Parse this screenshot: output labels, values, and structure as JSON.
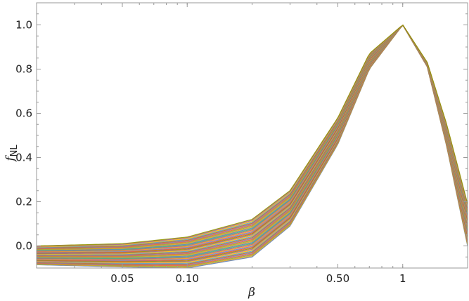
{
  "chart_data": {
    "type": "line",
    "title": "",
    "xlabel": "β",
    "ylabel_main": "f",
    "ylabel_sub": "NL",
    "x_scale": "log",
    "xlim": [
      0.02,
      2
    ],
    "ylim": [
      -0.1,
      1.1
    ],
    "x_ticks": [
      {
        "value": 0.05,
        "label": "0.05"
      },
      {
        "value": 0.1,
        "label": "0.10"
      },
      {
        "value": 0.5,
        "label": "0.50"
      },
      {
        "value": 1,
        "label": "1"
      }
    ],
    "y_ticks": [
      {
        "value": 0.0,
        "label": "0.0"
      },
      {
        "value": 0.2,
        "label": "0.2"
      },
      {
        "value": 0.4,
        "label": "0.4"
      },
      {
        "value": 0.6,
        "label": "0.6"
      },
      {
        "value": 0.8,
        "label": "0.8"
      },
      {
        "value": 1.0,
        "label": "1.0"
      }
    ],
    "grid": false,
    "legend": "none",
    "band": {
      "x": [
        0.02,
        0.05,
        0.1,
        0.2,
        0.3,
        0.5,
        0.7,
        1.0,
        1.3,
        1.6,
        2.0
      ],
      "upper": [
        0.0,
        0.01,
        0.04,
        0.12,
        0.25,
        0.58,
        0.87,
        1.0,
        0.83,
        0.55,
        0.19
      ],
      "lower": [
        -0.085,
        -0.095,
        -0.1,
        -0.05,
        0.09,
        0.46,
        0.8,
        1.0,
        0.81,
        0.45,
        0.0
      ]
    },
    "series_count": 40,
    "colors": [
      "#5e81b5",
      "#e19c24",
      "#8fb032",
      "#eb6235",
      "#8778b3",
      "#c56e1a",
      "#5d9ec7",
      "#ffbf00",
      "#a5609d",
      "#929600",
      "#e95536",
      "#6685d9",
      "#f89f13",
      "#bc5b80",
      "#47b66d"
    ]
  }
}
